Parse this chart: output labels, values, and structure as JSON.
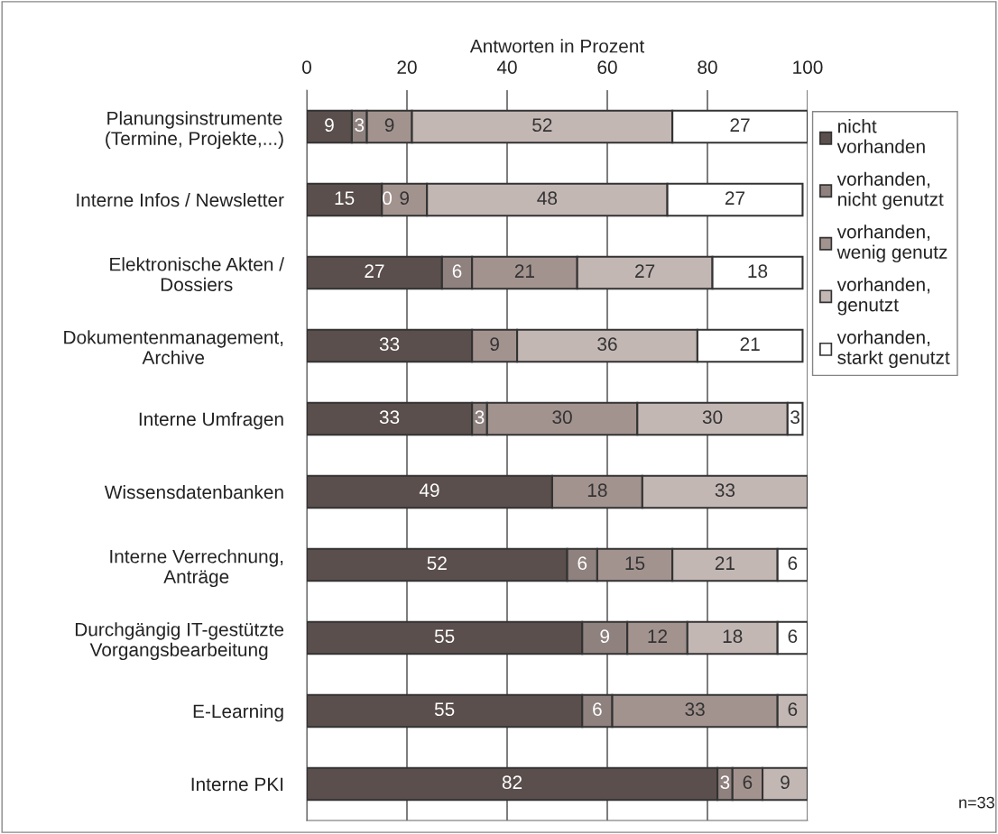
{
  "chart_data": {
    "type": "bar",
    "orientation": "horizontal",
    "stacked": true,
    "xlabel": "Antworten in Prozent",
    "categories": [
      "Planungsinstrumente\n(Termine, Projekte,...)",
      "Interne Infos / Newsletter",
      "Elektronische Akten /\nDossiers",
      "Dokumentenmanagement,\nArchive",
      "Interne Umfragen",
      "Wissensdatenbanken",
      "Interne Verrechnung,\nAnträge",
      "Durchgängig IT-gestützte\nVorgangsbearbeitung",
      "E-Learning",
      "Interne PKI"
    ],
    "series": [
      {
        "name": "nicht\nvorhanden",
        "color": "#5a4f4c",
        "values": [
          9,
          15,
          27,
          33,
          33,
          49,
          52,
          55,
          55,
          82
        ]
      },
      {
        "name": "vorhanden,\nnicht genutzt",
        "color": "#8e817e",
        "values": [
          3,
          null,
          6,
          null,
          3,
          null,
          6,
          9,
          6,
          3
        ]
      },
      {
        "name": "vorhanden,\nwenig genutz",
        "color": "#a3938f",
        "values": [
          9,
          9,
          21,
          9,
          30,
          18,
          15,
          12,
          33,
          6
        ]
      },
      {
        "name": "vorhanden,\ngenutzt",
        "color": "#c3b7b4",
        "values": [
          52,
          48,
          27,
          36,
          30,
          33,
          21,
          18,
          6,
          9
        ]
      },
      {
        "name": "vorhanden,\nstarkt genutzt",
        "color": "#ffffff",
        "values": [
          27,
          27,
          18,
          21,
          3,
          null,
          6,
          6,
          null,
          null
        ]
      }
    ],
    "xlim": [
      0,
      100
    ],
    "xticks": [
      0,
      20,
      40,
      60,
      80,
      100
    ],
    "grid": "x",
    "legend": "right",
    "data_labels": true,
    "annotations": [
      {
        "text": "0",
        "x": 15,
        "y": "Interne Infos / Newsletter"
      },
      "n=33"
    ]
  }
}
